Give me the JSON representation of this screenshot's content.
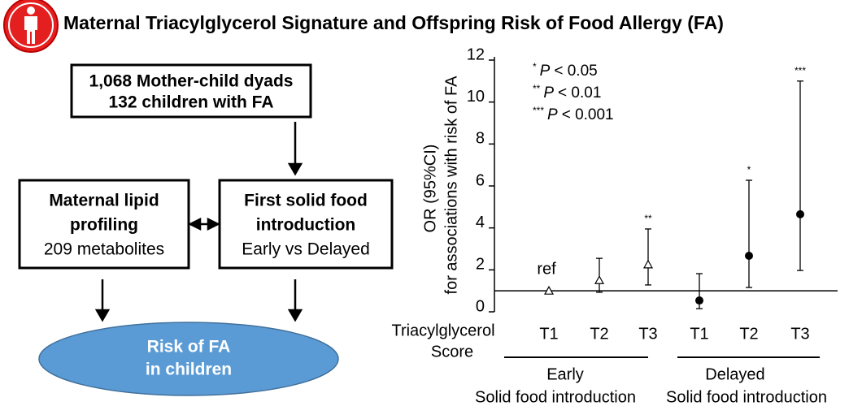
{
  "title": "Maternal Triacylglycerol Signature and Offspring Risk of Food Allergy (FA)",
  "diagram": {
    "cohort": [
      "1,068 Mother-child dyads",
      "132 children with FA"
    ],
    "lipid": {
      "title": [
        "Maternal lipid",
        "profiling"
      ],
      "detail": "209 metabolites"
    },
    "food": {
      "title": [
        "First solid food",
        "introduction"
      ],
      "detail": "Early vs Delayed"
    },
    "outcome": [
      "Risk of FA",
      "in children"
    ]
  },
  "chart_data": {
    "type": "dot",
    "y_label": [
      "OR (95%CI)",
      "for associations with risk of FA"
    ],
    "x_label": [
      "Triacylglycerol",
      "Score"
    ],
    "ylim": [
      0,
      12
    ],
    "yticks": [
      0,
      2,
      4,
      6,
      8,
      10,
      12
    ],
    "reference_line": 1,
    "legend": [
      {
        "stars": "*",
        "p": "P",
        "text": "< 0.05"
      },
      {
        "stars": "**",
        "p": "P",
        "text": "< 0.01"
      },
      {
        "stars": "***",
        "p": "P",
        "text": "< 0.001"
      }
    ],
    "series": [
      {
        "name": "Early",
        "subtitle": "Solid food introduction",
        "marker": "triangle",
        "color": "#000000",
        "categories": [
          "T1",
          "T2",
          "T3"
        ],
        "values": [
          1.0,
          1.5,
          2.25
        ],
        "lower": [
          1.0,
          0.93,
          1.28
        ],
        "upper": [
          1.0,
          2.55,
          3.95
        ],
        "annotations": [
          "ref",
          null,
          "**"
        ]
      },
      {
        "name": "Delayed",
        "subtitle": "Solid food introduction",
        "marker": "circle",
        "color": "#000000",
        "categories": [
          "T1",
          "T2",
          "T3"
        ],
        "values": [
          0.54,
          2.67,
          4.65
        ],
        "lower": [
          0.15,
          1.16,
          1.97
        ],
        "upper": [
          1.82,
          6.27,
          11.0
        ],
        "annotations": [
          null,
          "*",
          "***"
        ]
      }
    ]
  }
}
